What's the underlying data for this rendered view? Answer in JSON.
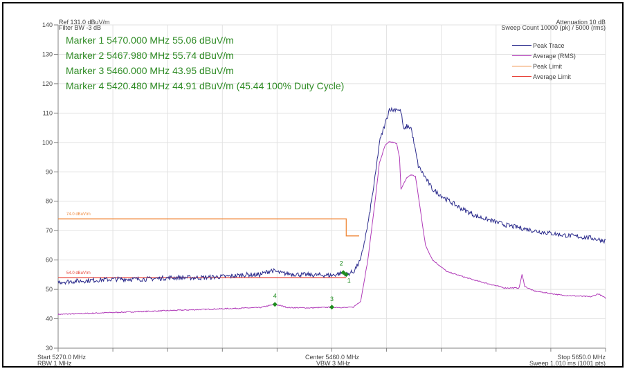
{
  "header": {
    "ref_level": "Ref 131.0 dBuV/m",
    "filter_bw": "Filter BW -3 dB",
    "attenuation": "Attenuation 10 dB",
    "sweep_count": "Sweep Count 10000 (pk) / 5000 (rms)"
  },
  "markers": [
    "Marker 1 5470.000 MHz 55.06 dBuV/m",
    "Marker 2 5467.980 MHz 55.74 dBuV/m",
    "Marker 3 5460.000 MHz 43.95 dBuV/m",
    "Marker 4 5420.480 MHz 44.91 dBuV/m (45.44 100% Duty Cycle)"
  ],
  "footer": {
    "start": "Start 5270.0 MHz",
    "rbw": "RBW 1 MHz",
    "center": "Center 5460.0 MHz",
    "vbw": "VBW 3 MHz",
    "stop": "Stop 5650.0 MHz",
    "sweep": "Sweep 1.010 ms (1001 pts)"
  },
  "colors": {
    "peak_trace": "#2b2b8c",
    "average_trace": "#b03ab8",
    "peak_limit": "#f08a3c",
    "average_limit": "#e8443a",
    "marker": "#1e8c1e",
    "marker_text": "#2e8b24",
    "grid": "#e2e2e2"
  },
  "chart_data": {
    "type": "line",
    "xlabel": "",
    "ylabel": "",
    "xlim": [
      5270,
      5650
    ],
    "ylim": [
      30,
      140
    ],
    "yticks": [
      30,
      40,
      50,
      60,
      70,
      80,
      90,
      100,
      110,
      120,
      130,
      140
    ],
    "grid": true,
    "legend_position": "top-right",
    "series": [
      {
        "name": "Peak Trace",
        "x": [
          5270,
          5290,
          5310,
          5330,
          5350,
          5370,
          5390,
          5400,
          5410,
          5418,
          5425,
          5440,
          5460,
          5465,
          5468,
          5470,
          5475,
          5480,
          5485,
          5490,
          5493,
          5498,
          5500,
          5502,
          5505,
          5508,
          5510,
          5512,
          5515,
          5520,
          5530,
          5540,
          5550,
          5560,
          5580,
          5600,
          5620,
          5640,
          5650
        ],
        "y": [
          52.5,
          53,
          53.5,
          53.5,
          54,
          54,
          54.5,
          55,
          55,
          56.5,
          55.5,
          55,
          54.8,
          55.3,
          55.7,
          55.1,
          56,
          60,
          72,
          88,
          100,
          108,
          111.5,
          111,
          111.5,
          110.5,
          104,
          105.5,
          105,
          92,
          84,
          80.5,
          77.5,
          75,
          72,
          70,
          68.5,
          67.5,
          66.5
        ]
      },
      {
        "name": "Average (RMS)",
        "x": [
          5270,
          5300,
          5330,
          5360,
          5390,
          5410,
          5420.48,
          5430,
          5445,
          5460,
          5470,
          5475,
          5480,
          5485,
          5490,
          5493,
          5497,
          5500,
          5503,
          5505,
          5507,
          5508,
          5512,
          5515,
          5518,
          5520,
          5525,
          5530,
          5540,
          5560,
          5580,
          5590,
          5592,
          5594,
          5600,
          5620,
          5640,
          5645,
          5650
        ],
        "y": [
          41.5,
          42,
          42.5,
          43,
          43.5,
          43.8,
          44.91,
          43.8,
          43.7,
          43.95,
          43.8,
          44,
          46,
          60,
          80,
          93,
          99,
          100.2,
          100,
          99.5,
          95,
          84,
          88,
          89,
          88.5,
          82,
          65,
          60,
          56,
          53,
          50.5,
          50.5,
          55,
          51,
          49.5,
          48,
          47.5,
          48.5,
          47
        ]
      },
      {
        "name": "Peak Limit",
        "x": [
          5270,
          5470,
          5470,
          5479
        ],
        "y": [
          74,
          74,
          68.2,
          68.2
        ]
      },
      {
        "name": "Average Limit",
        "x": [
          5270,
          5470
        ],
        "y": [
          54,
          54
        ]
      }
    ],
    "limit_labels": [
      "74.0 dBuV/m",
      "54.0 dBuV/m"
    ],
    "markers": [
      {
        "label": "1",
        "x": 5470.0,
        "y": 55.06
      },
      {
        "label": "2",
        "x": 5467.98,
        "y": 55.74
      },
      {
        "label": "3",
        "x": 5460.0,
        "y": 43.95
      },
      {
        "label": "4",
        "x": 5420.48,
        "y": 44.91
      }
    ]
  }
}
